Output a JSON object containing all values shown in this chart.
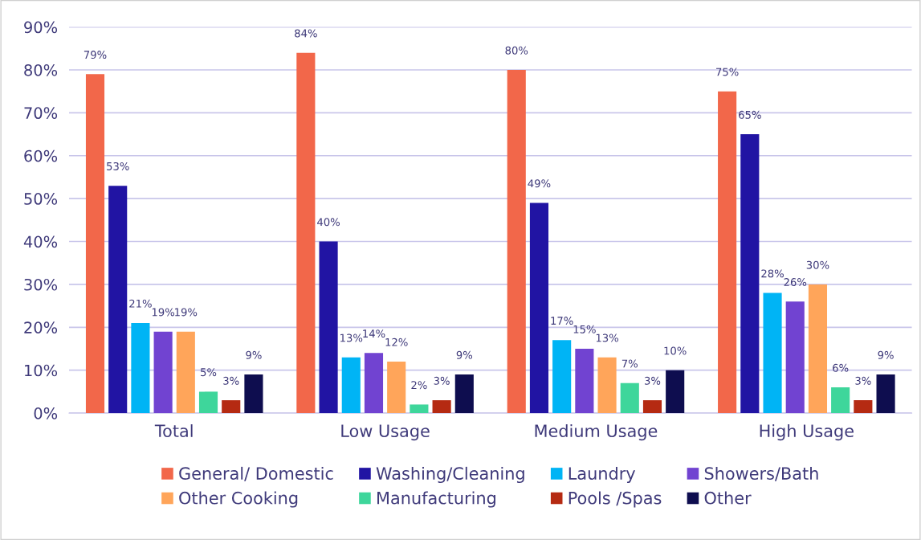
{
  "chart_data": {
    "type": "bar",
    "categories": [
      "Total",
      "Low Usage",
      "Medium Usage",
      "High Usage"
    ],
    "series": [
      {
        "name": "General/ Domestic",
        "color": "#f2674a",
        "values": [
          79,
          84,
          80,
          75
        ],
        "value_labels": [
          "79%",
          "84%",
          "80%",
          "75%"
        ]
      },
      {
        "name": "Washing/Cleaning",
        "color": "#2114a3",
        "values": [
          53,
          40,
          49,
          65
        ],
        "value_labels": [
          "53%",
          "40%",
          "49%",
          "65%"
        ]
      },
      {
        "name": "Laundry",
        "color": "#00b4f5",
        "values": [
          21,
          13,
          17,
          28
        ],
        "value_labels": [
          "21%",
          "13%",
          "17%",
          "28%"
        ]
      },
      {
        "name": "Showers/Bath",
        "color": "#7143d1",
        "values": [
          19,
          14,
          15,
          26
        ],
        "value_labels": [
          "19%",
          "14%",
          "15%",
          "26%"
        ]
      },
      {
        "name": "Other Cooking",
        "color": "#ffa55a",
        "values": [
          19,
          12,
          13,
          30
        ],
        "value_labels": [
          "19%",
          "12%",
          "13%",
          "30%"
        ]
      },
      {
        "name": "Manufacturing",
        "color": "#3ed69b",
        "values": [
          5,
          2,
          7,
          6
        ],
        "value_labels": [
          "5%",
          "2%",
          "7%",
          "6%"
        ]
      },
      {
        "name": "Pools /Spas",
        "color": "#b52a12",
        "values": [
          3,
          3,
          3,
          3
        ],
        "value_labels": [
          "3%",
          "3%",
          "3%",
          "3%"
        ]
      },
      {
        "name": "Other",
        "color": "#0e0d4f",
        "values": [
          9,
          9,
          10,
          9
        ],
        "value_labels": [
          "9%",
          "9%",
          "10%",
          "9%"
        ]
      }
    ],
    "ylim": [
      0,
      90
    ],
    "yticks": [
      {
        "value": 0,
        "label": "0%"
      },
      {
        "value": 10,
        "label": "10%"
      },
      {
        "value": 20,
        "label": "20%"
      },
      {
        "value": 30,
        "label": "30%"
      },
      {
        "value": 40,
        "label": "40%"
      },
      {
        "value": 50,
        "label": "50%"
      },
      {
        "value": 60,
        "label": "60%"
      },
      {
        "value": 70,
        "label": "70%"
      },
      {
        "value": 80,
        "label": "80%"
      },
      {
        "value": 90,
        "label": "90%"
      }
    ],
    "grid": "y",
    "legend": "bottom"
  }
}
